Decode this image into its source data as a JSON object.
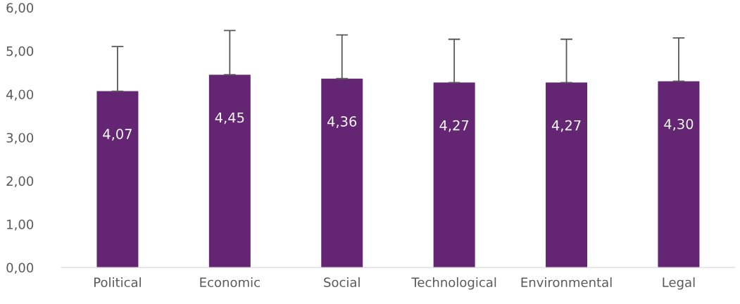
{
  "chart_data": {
    "type": "bar",
    "categories": [
      "Political",
      "Economic",
      "Social",
      "Technological",
      "Environmental",
      "Legal"
    ],
    "values": [
      4.07,
      4.45,
      4.36,
      4.27,
      4.27,
      4.3
    ],
    "value_labels": [
      "4,07",
      "4,45",
      "4,36",
      "4,27",
      "4,27",
      "4,30"
    ],
    "errors": [
      [
        4.07,
        5.1
      ],
      [
        4.45,
        5.47
      ],
      [
        4.36,
        5.37
      ],
      [
        4.27,
        5.27
      ],
      [
        4.27,
        5.27
      ],
      [
        4.3,
        5.3
      ]
    ],
    "color": "#642573",
    "ylim": [
      0,
      6
    ],
    "yticks": [
      {
        "value": 0,
        "label": "0,00"
      },
      {
        "value": 1,
        "label": "1,00"
      },
      {
        "value": 2,
        "label": "2,00"
      },
      {
        "value": 3,
        "label": "3,00"
      },
      {
        "value": 4,
        "label": "4,00"
      },
      {
        "value": 5,
        "label": "5,00"
      },
      {
        "value": 6,
        "label": "6,00"
      }
    ],
    "grid": false
  }
}
